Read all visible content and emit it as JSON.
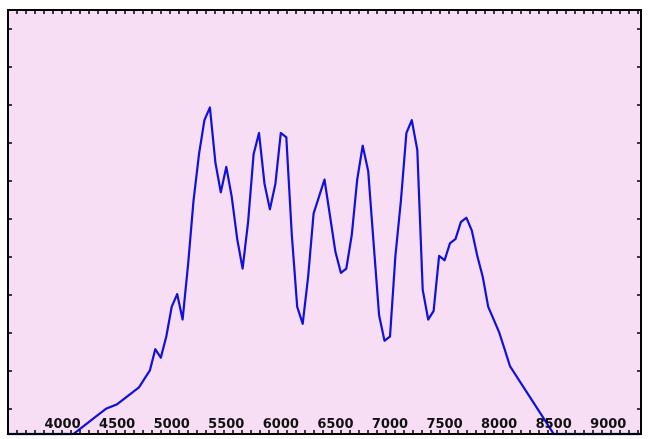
{
  "chart_data": {
    "type": "line",
    "title": "",
    "xlabel": "",
    "ylabel": "",
    "xlim": [
      3500,
      9300
    ],
    "ylim": [
      0,
      1.0
    ],
    "grid": false,
    "x_ticks": [
      {
        "value": 4000,
        "label": "4000"
      },
      {
        "value": 4500,
        "label": "4500"
      },
      {
        "value": 5000,
        "label": "5000"
      },
      {
        "value": 5500,
        "label": "5500"
      },
      {
        "value": 6000,
        "label": "6000"
      },
      {
        "value": 6500,
        "label": "6500"
      },
      {
        "value": 7000,
        "label": "7000"
      },
      {
        "value": 7500,
        "label": "7500"
      },
      {
        "value": 8000,
        "label": "8000"
      },
      {
        "value": 8500,
        "label": "8500"
      },
      {
        "value": 9000,
        "label": "9000"
      }
    ],
    "colors": {
      "plot_background": "#f7def5",
      "line": "#1010dd",
      "frame": "#000000"
    },
    "series": [
      {
        "x": [
          3500,
          4000,
          4100,
          4200,
          4300,
          4400,
          4500,
          4600,
          4700,
          4750,
          4800,
          4850,
          4900,
          4950,
          5000,
          5050,
          5100,
          5150,
          5200,
          5250,
          5300,
          5350,
          5400,
          5450,
          5500,
          5550,
          5600,
          5650,
          5700,
          5750,
          5800,
          5850,
          5900,
          5950,
          6000,
          6050,
          6100,
          6150,
          6200,
          6250,
          6300,
          6400,
          6500,
          6550,
          6600,
          6650,
          6700,
          6750,
          6800,
          6850,
          6900,
          6950,
          7000,
          7050,
          7100,
          7150,
          7200,
          7250,
          7300,
          7350,
          7400,
          7450,
          7500,
          7550,
          7600,
          7650,
          7700,
          7750,
          7800,
          7850,
          7900,
          7950,
          8000,
          8050,
          8100,
          8200,
          8300,
          8400,
          8500,
          8600,
          8700,
          8800,
          8900,
          8950,
          9000,
          9050,
          9100,
          9150,
          9200,
          9250,
          9300
        ],
        "y": [
          0.0,
          0.0,
          0.0,
          0.02,
          0.04,
          0.06,
          0.07,
          0.09,
          0.11,
          0.13,
          0.15,
          0.2,
          0.18,
          0.23,
          0.3,
          0.33,
          0.27,
          0.4,
          0.55,
          0.66,
          0.74,
          0.77,
          0.64,
          0.57,
          0.63,
          0.56,
          0.46,
          0.39,
          0.5,
          0.66,
          0.71,
          0.59,
          0.53,
          0.59,
          0.71,
          0.7,
          0.47,
          0.3,
          0.26,
          0.37,
          0.52,
          0.6,
          0.43,
          0.38,
          0.39,
          0.47,
          0.6,
          0.68,
          0.62,
          0.45,
          0.28,
          0.22,
          0.23,
          0.42,
          0.55,
          0.71,
          0.74,
          0.67,
          0.34,
          0.27,
          0.29,
          0.42,
          0.41,
          0.45,
          0.46,
          0.5,
          0.51,
          0.48,
          0.42,
          0.37,
          0.3,
          0.27,
          0.24,
          0.2,
          0.16,
          0.12,
          0.08,
          0.04,
          0.0,
          0.0,
          0.0,
          0.0,
          0.0,
          0.0,
          0.0,
          0.0,
          0.0,
          0.0,
          0.0,
          0.0,
          0.0
        ]
      }
    ]
  }
}
